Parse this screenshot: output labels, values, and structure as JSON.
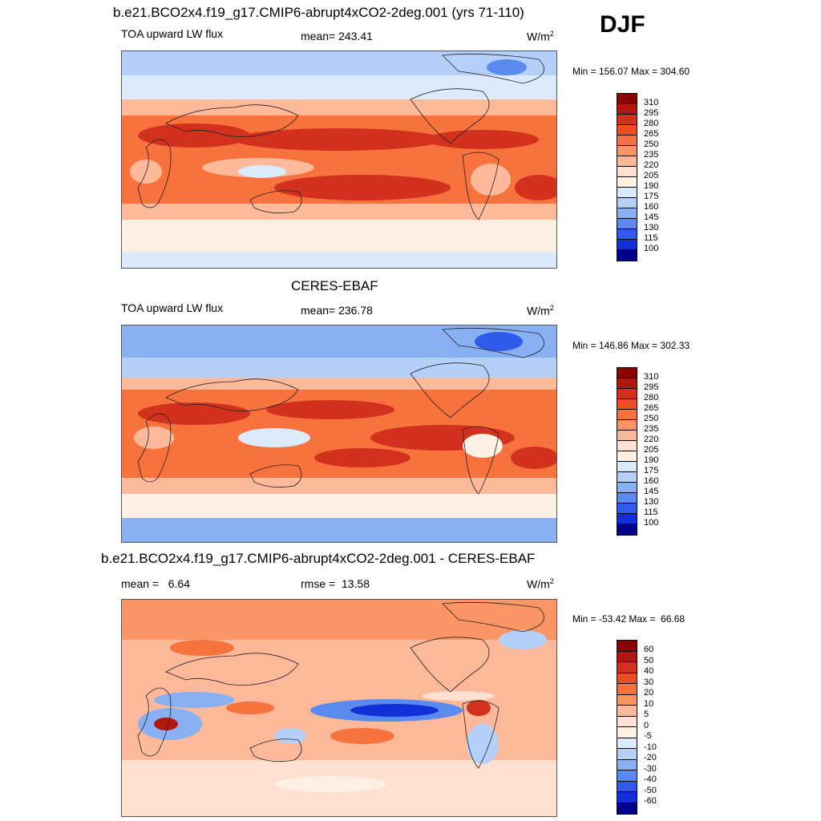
{
  "season": "DJF",
  "panels": [
    {
      "title": "b.e21.BCO2x4.f19_g17.CMIP6-abrupt4xCO2-2deg.001 (yrs 71-110)",
      "left_label": "TOA upward LW flux",
      "center_label": "mean= 243.41",
      "units_base": "W/m",
      "units_exp": "2",
      "minmax": "Min = 156.07 Max = 304.60",
      "colorbar_labels": [
        "310",
        "295",
        "280",
        "265",
        "250",
        "235",
        "220",
        "205",
        "190",
        "175",
        "160",
        "145",
        "130",
        "115",
        "100"
      ]
    },
    {
      "title": "CERES-EBAF",
      "left_label": "TOA upward LW flux",
      "center_label": "mean= 236.78",
      "units_base": "W/m",
      "units_exp": "2",
      "minmax": "Min = 146.86 Max = 302.33",
      "colorbar_labels": [
        "310",
        "295",
        "280",
        "265",
        "250",
        "235",
        "220",
        "205",
        "190",
        "175",
        "160",
        "145",
        "130",
        "115",
        "100"
      ]
    },
    {
      "title": "b.e21.BCO2x4.f19_g17.CMIP6-abrupt4xCO2-2deg.001 - CERES-EBAF",
      "left_label": "mean =   6.64",
      "center_label": "rmse =  13.58",
      "units_base": "W/m",
      "units_exp": "2",
      "minmax": "Min = -53.42 Max =  66.68",
      "colorbar_labels": [
        "60",
        "50",
        "40",
        "30",
        "20",
        "10",
        "5",
        "0",
        "-5",
        "-10",
        "-20",
        "-30",
        "-40",
        "-50",
        "-60"
      ]
    }
  ],
  "colors": {
    "abs_scale": [
      "#8b0000",
      "#b2170e",
      "#d2311e",
      "#ee4e24",
      "#f7723c",
      "#fb9566",
      "#fdb99a",
      "#fde0cf",
      "#fef1e4",
      "#dcebfb",
      "#b4d0f8",
      "#88b0f2",
      "#5b8aee",
      "#2f5bea",
      "#1230d8",
      "#00008b"
    ],
    "diff_scale": [
      "#8b0000",
      "#b2170e",
      "#d2311e",
      "#ee4e24",
      "#f7723c",
      "#fb9566",
      "#fdb99a",
      "#fde0cf",
      "#fef1e4",
      "#dcebfb",
      "#b4d0f8",
      "#88b0f2",
      "#5b8aee",
      "#2f5bea",
      "#1230d8",
      "#00008b"
    ]
  }
}
